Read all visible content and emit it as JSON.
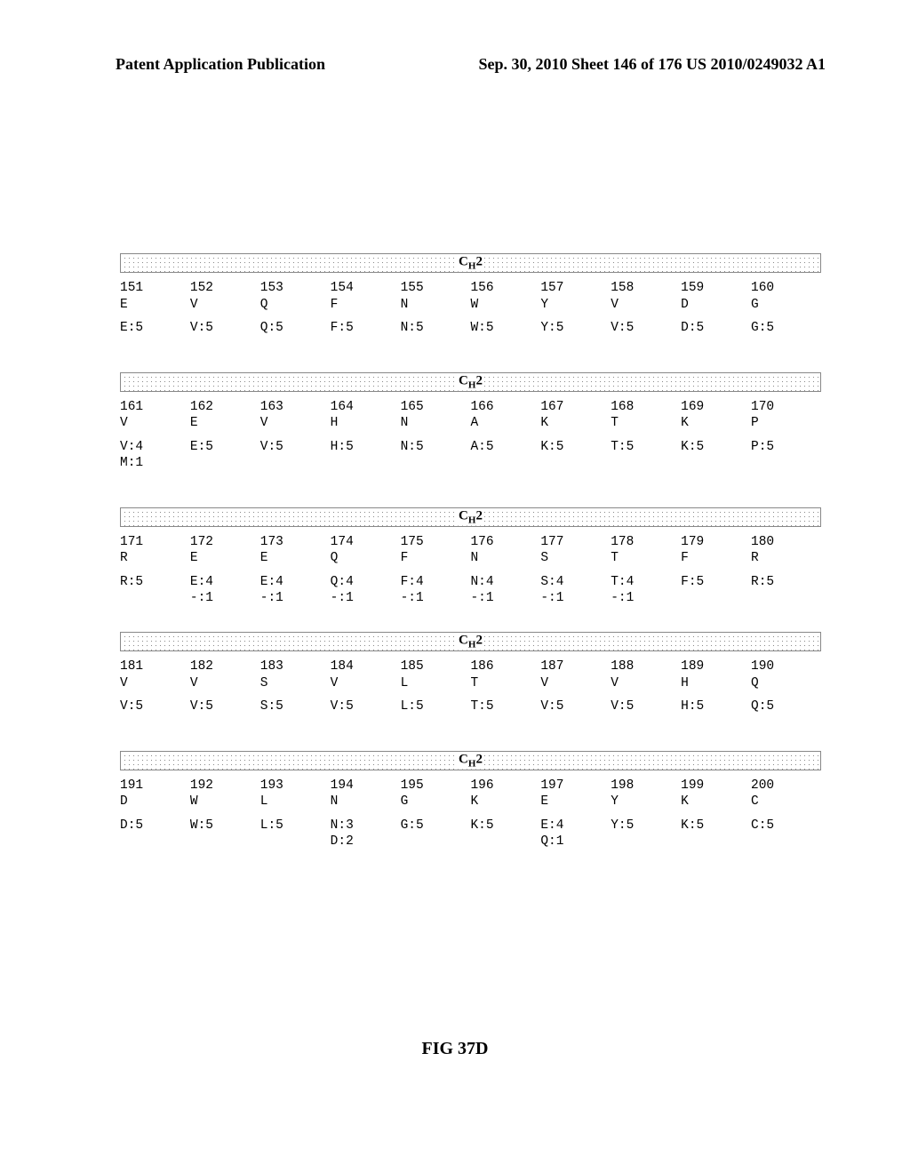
{
  "header": {
    "left": "Patent Application Publication",
    "right": "Sep. 30, 2010   Sheet 146 of 176   US 2010/0249032 A1"
  },
  "domain_label_html": "C<sub>H</sub>2",
  "figure_caption": "FIG 37D",
  "blocks": [
    {
      "positions": [
        "151",
        "152",
        "153",
        "154",
        "155",
        "156",
        "157",
        "158",
        "159",
        "160"
      ],
      "residues": [
        "E",
        "V",
        "Q",
        "F",
        "N",
        "W",
        "Y",
        "V",
        "D",
        "G"
      ],
      "freq": [
        "E:5",
        "V:5",
        "Q:5",
        "F:5",
        "N:5",
        "W:5",
        "Y:5",
        "V:5",
        "D:5",
        "G:5"
      ],
      "trailing_spacer": "big"
    },
    {
      "positions": [
        "161",
        "162",
        "163",
        "164",
        "165",
        "166",
        "167",
        "168",
        "169",
        "170"
      ],
      "residues": [
        "V",
        "E",
        "V",
        "H",
        "N",
        "A",
        "K",
        "T",
        "K",
        "P"
      ],
      "freq": [
        "V:4\nM:1",
        "E:5",
        "V:5",
        "H:5",
        "N:5",
        "A:5",
        "K:5",
        "T:5",
        "K:5",
        "P:5"
      ],
      "trailing_spacer": "big"
    },
    {
      "positions": [
        "171",
        "172",
        "173",
        "174",
        "175",
        "176",
        "177",
        "178",
        "179",
        "180"
      ],
      "residues": [
        "R",
        "E",
        "E",
        "Q",
        "F",
        "N",
        "S",
        "T",
        "F",
        "R"
      ],
      "freq": [
        "R:5",
        "E:4\n-:1",
        "E:4\n-:1",
        "Q:4\n-:1",
        "F:4\n-:1",
        "N:4\n-:1",
        "S:4\n-:1",
        "T:4\n-:1",
        "F:5",
        "R:5"
      ],
      "trailing_spacer": "mid"
    },
    {
      "positions": [
        "181",
        "182",
        "183",
        "184",
        "185",
        "186",
        "187",
        "188",
        "189",
        "190"
      ],
      "residues": [
        "V",
        "V",
        "S",
        "V",
        "L",
        "T",
        "V",
        "V",
        "H",
        "Q"
      ],
      "freq": [
        "V:5",
        "V:5",
        "S:5",
        "V:5",
        "L:5",
        "T:5",
        "V:5",
        "V:5",
        "H:5",
        "Q:5"
      ],
      "trailing_spacer": "big"
    },
    {
      "positions": [
        "191",
        "192",
        "193",
        "194",
        "195",
        "196",
        "197",
        "198",
        "199",
        "200"
      ],
      "residues": [
        "D",
        "W",
        "L",
        "N",
        "G",
        "K",
        "E",
        "Y",
        "K",
        "C"
      ],
      "freq": [
        "D:5",
        "W:5",
        "L:5",
        "N:3\nD:2",
        "G:5",
        "K:5",
        "E:4\nQ:1",
        "Y:5",
        "K:5",
        "C:5"
      ],
      "trailing_spacer": "none"
    }
  ]
}
